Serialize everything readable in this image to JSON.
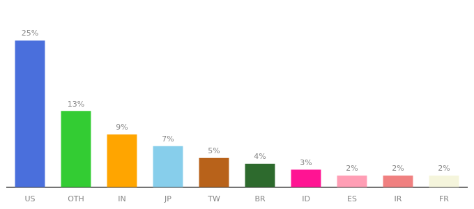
{
  "chart_data": {
    "type": "bar",
    "categories": [
      "US",
      "OTH",
      "IN",
      "JP",
      "TW",
      "BR",
      "ID",
      "ES",
      "IR",
      "FR"
    ],
    "values": [
      25,
      13,
      9,
      7,
      5,
      4,
      3,
      2,
      2,
      2
    ],
    "value_labels": [
      "25%",
      "13%",
      "9%",
      "7%",
      "5%",
      "4%",
      "3%",
      "2%",
      "2%",
      "2%"
    ],
    "colors": [
      "#4a6fdc",
      "#33cc33",
      "#ffa500",
      "#87ceeb",
      "#b8621a",
      "#2d6a2d",
      "#ff1493",
      "#ff9eb5",
      "#f08080",
      "#f5f5dc"
    ],
    "ylim": [
      0,
      30
    ],
    "data_labels": true,
    "tick_labels": "x",
    "grid": false
  }
}
